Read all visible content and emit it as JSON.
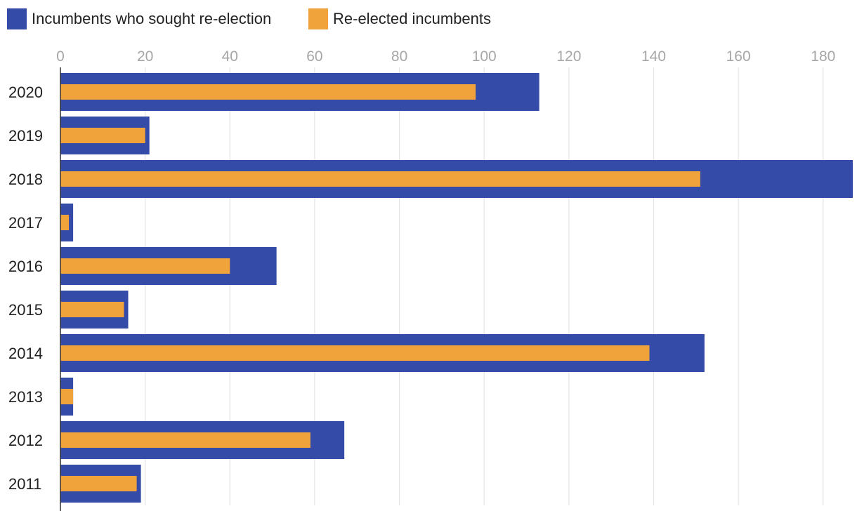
{
  "chart_data": {
    "type": "bar",
    "orientation": "horizontal",
    "categories": [
      "2020",
      "2019",
      "2018",
      "2017",
      "2016",
      "2015",
      "2014",
      "2013",
      "2012",
      "2011"
    ],
    "series": [
      {
        "name": "Incumbents who sought re-election",
        "color": "#354ba8",
        "values": [
          113,
          21,
          187,
          3,
          51,
          16,
          152,
          3,
          67,
          19
        ]
      },
      {
        "name": "Re-elected incumbents",
        "color": "#f0a33a",
        "values": [
          98,
          20,
          151,
          2,
          40,
          15,
          139,
          3,
          59,
          18
        ]
      }
    ],
    "x_ticks": [
      "0",
      "20",
      "40",
      "60",
      "80",
      "100",
      "120",
      "140",
      "160",
      "180"
    ],
    "xlim": [
      0,
      186
    ],
    "grid": true,
    "legend_position": "top-left",
    "title": "",
    "xlabel": "",
    "ylabel": ""
  }
}
